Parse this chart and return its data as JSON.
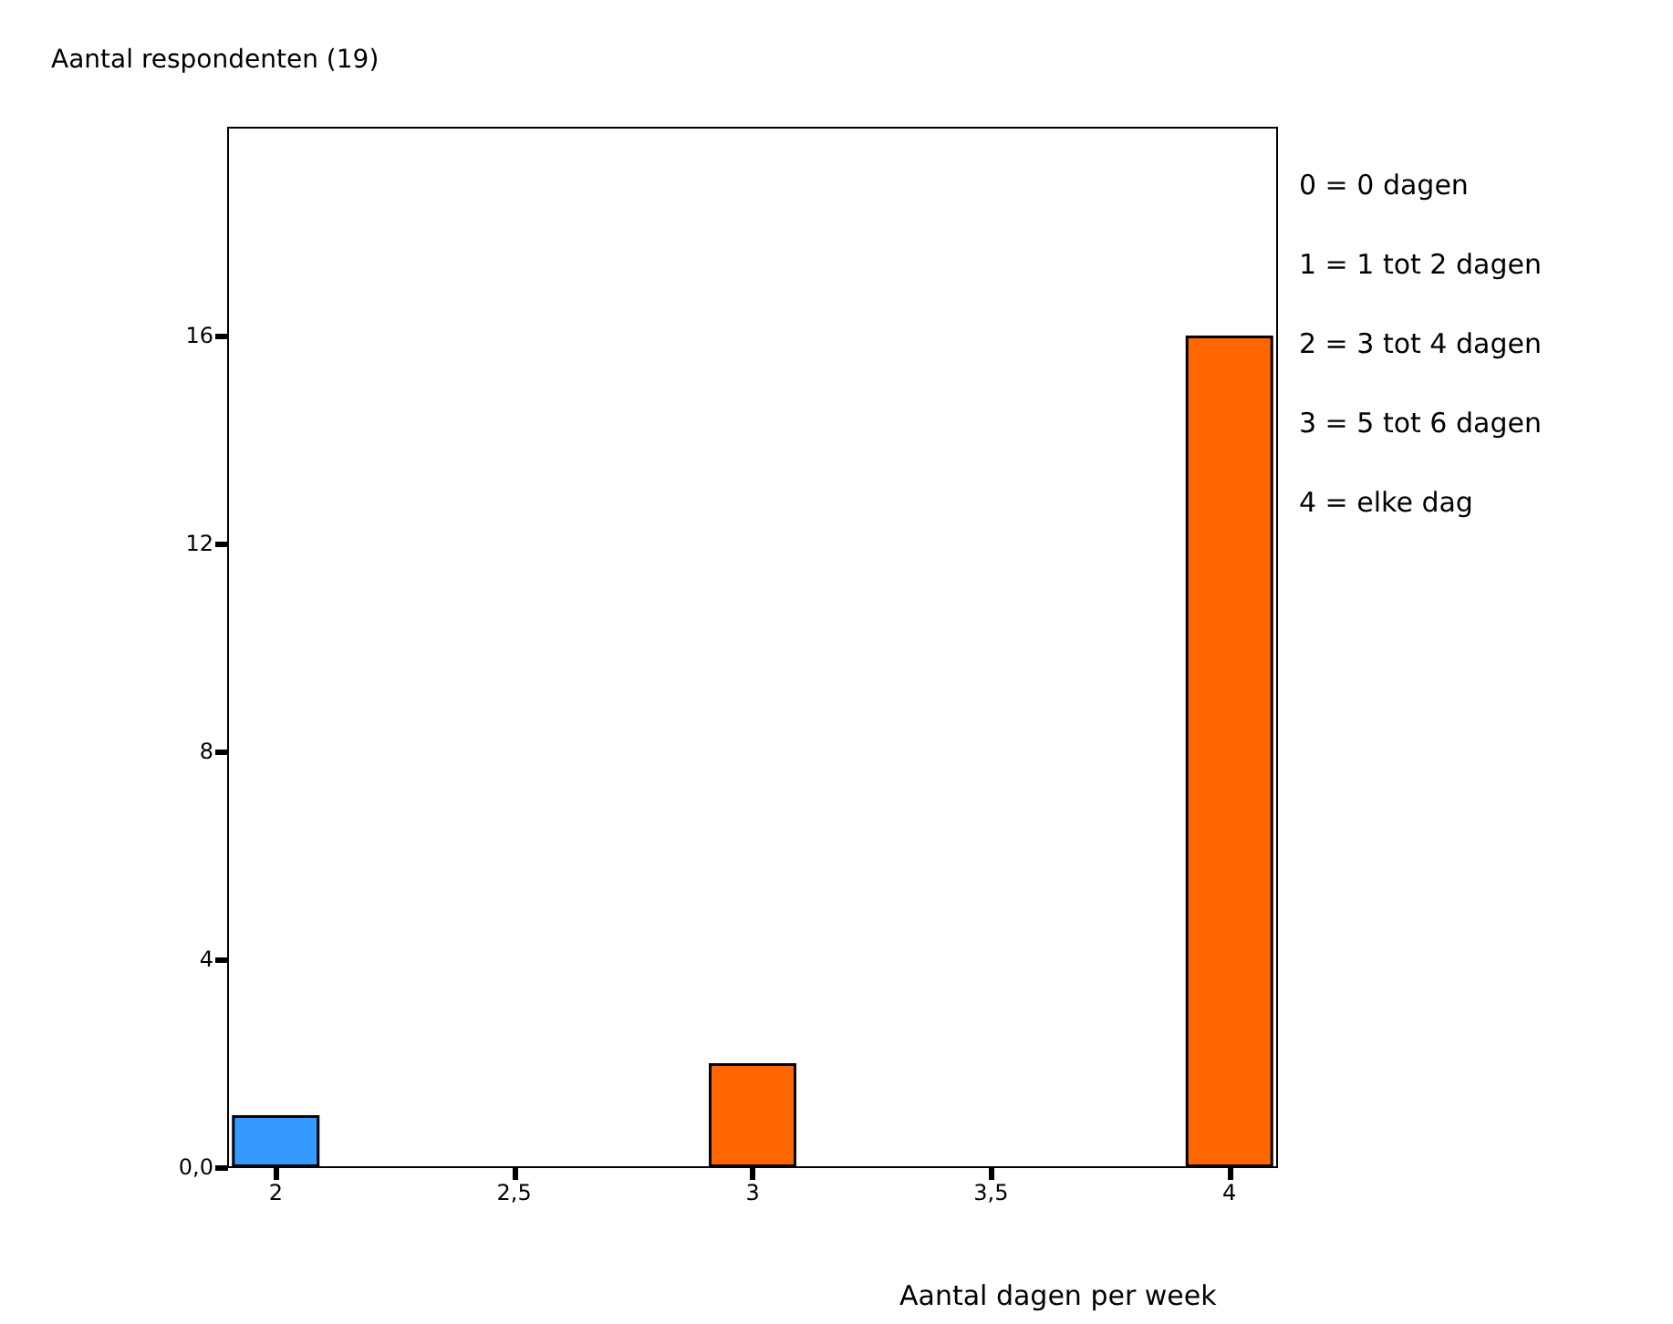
{
  "chart_data": {
    "type": "bar",
    "ylabel": "Aantal respondenten (19)",
    "xlabel": "Aantal dagen per week",
    "x": [
      2,
      3,
      4
    ],
    "values": [
      1,
      2,
      16
    ],
    "colors": [
      "#3399ff",
      "#ff6600",
      "#ff6600"
    ],
    "xlim": [
      1.9,
      4.1
    ],
    "xticks": [
      2,
      {
        "value": 2.5,
        "label": "2,5"
      },
      3,
      {
        "value": 3.5,
        "label": "3,5"
      },
      4
    ],
    "ylim": [
      0,
      20
    ],
    "yticks": [
      {
        "value": 0,
        "label": "0,0"
      },
      4,
      8,
      12,
      16
    ],
    "grid": false,
    "annotations": [
      "0 = 0 dagen",
      "1 = 1 tot 2 dagen",
      "2 = 3 tot 4 dagen",
      "3 = 5 tot 6 dagen",
      "4 = elke dag"
    ]
  }
}
